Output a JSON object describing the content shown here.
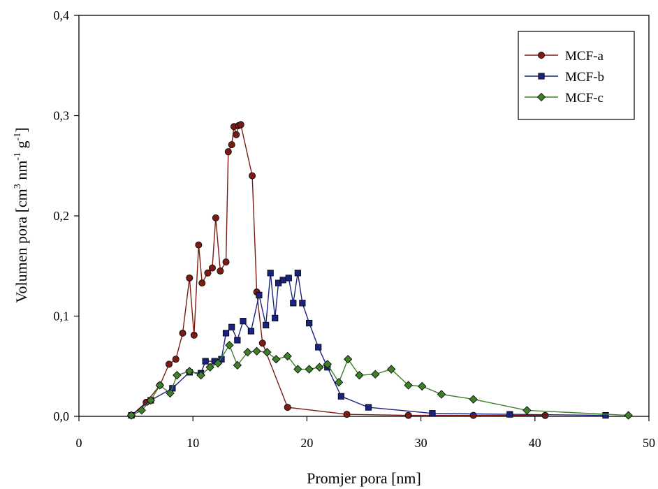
{
  "chart_data": {
    "type": "line",
    "xlabel": "Promjer pora [nm]",
    "ylabel": {
      "base": "Volumen pora [cm",
      "sup1": "3",
      "mid": " nm",
      "sup2": "-1",
      "mid2": " g",
      "sup3": "-1",
      "end": "]"
    },
    "xlim": [
      0,
      50
    ],
    "ylim": [
      0,
      0.4
    ],
    "xticks": [
      {
        "value": 0,
        "label": "0"
      },
      {
        "value": 10,
        "label": "10"
      },
      {
        "value": 20,
        "label": "20"
      },
      {
        "value": 30,
        "label": "30"
      },
      {
        "value": 40,
        "label": "40"
      },
      {
        "value": 50,
        "label": "50"
      }
    ],
    "yticks": [
      {
        "value": 0,
        "label": "0,0"
      },
      {
        "value": 0.1,
        "label": "0,1"
      },
      {
        "value": 0.2,
        "label": "0,2"
      },
      {
        "value": 0.3,
        "label": "0,3"
      },
      {
        "value": 0.4,
        "label": "0,4"
      }
    ],
    "grid": false,
    "legend_position": "top-right",
    "series": [
      {
        "name": "MCF-a",
        "color": "#7b1c14",
        "marker": "circle",
        "points": [
          [
            4.6,
            0.001
          ],
          [
            5.9,
            0.014
          ],
          [
            7.1,
            0.031
          ],
          [
            7.9,
            0.052
          ],
          [
            8.5,
            0.057
          ],
          [
            9.1,
            0.083
          ],
          [
            9.7,
            0.138
          ],
          [
            10.1,
            0.081
          ],
          [
            10.5,
            0.171
          ],
          [
            10.8,
            0.133
          ],
          [
            11.3,
            0.143
          ],
          [
            11.7,
            0.148
          ],
          [
            12.0,
            0.198
          ],
          [
            12.4,
            0.145
          ],
          [
            12.9,
            0.154
          ],
          [
            13.1,
            0.264
          ],
          [
            13.4,
            0.271
          ],
          [
            13.6,
            0.289
          ],
          [
            13.8,
            0.281
          ],
          [
            14.0,
            0.29
          ],
          [
            14.2,
            0.291
          ],
          [
            15.2,
            0.24
          ],
          [
            15.6,
            0.124
          ],
          [
            16.1,
            0.073
          ],
          [
            18.3,
            0.009
          ],
          [
            23.5,
            0.002
          ],
          [
            28.9,
            0.001
          ],
          [
            34.6,
            0.001
          ],
          [
            40.9,
            0.0009
          ]
        ]
      },
      {
        "name": "MCF-b",
        "color": "#1a237e",
        "marker": "square",
        "points": [
          [
            4.6,
            0.001
          ],
          [
            6.3,
            0.016
          ],
          [
            8.2,
            0.028
          ],
          [
            9.7,
            0.044
          ],
          [
            10.7,
            0.043
          ],
          [
            11.1,
            0.055
          ],
          [
            11.9,
            0.055
          ],
          [
            12.5,
            0.057
          ],
          [
            12.9,
            0.083
          ],
          [
            13.4,
            0.089
          ],
          [
            13.9,
            0.076
          ],
          [
            14.4,
            0.095
          ],
          [
            15.1,
            0.085
          ],
          [
            15.8,
            0.121
          ],
          [
            16.4,
            0.091
          ],
          [
            16.8,
            0.143
          ],
          [
            17.2,
            0.098
          ],
          [
            17.5,
            0.133
          ],
          [
            17.9,
            0.136
          ],
          [
            18.4,
            0.138
          ],
          [
            18.8,
            0.113
          ],
          [
            19.2,
            0.143
          ],
          [
            19.6,
            0.113
          ],
          [
            20.2,
            0.093
          ],
          [
            21.0,
            0.069
          ],
          [
            21.8,
            0.049
          ],
          [
            23.0,
            0.02
          ],
          [
            25.4,
            0.009
          ],
          [
            31.0,
            0.003
          ],
          [
            37.8,
            0.002
          ],
          [
            46.2,
            0.001
          ]
        ]
      },
      {
        "name": "MCF-c",
        "color": "#3f7f2a",
        "marker": "diamond",
        "points": [
          [
            4.6,
            0.001
          ],
          [
            5.5,
            0.006
          ],
          [
            6.3,
            0.016
          ],
          [
            7.1,
            0.031
          ],
          [
            8.0,
            0.023
          ],
          [
            8.6,
            0.041
          ],
          [
            9.7,
            0.045
          ],
          [
            10.7,
            0.041
          ],
          [
            11.5,
            0.049
          ],
          [
            12.2,
            0.053
          ],
          [
            13.2,
            0.071
          ],
          [
            13.9,
            0.051
          ],
          [
            14.8,
            0.064
          ],
          [
            15.6,
            0.065
          ],
          [
            16.5,
            0.064
          ],
          [
            17.3,
            0.057
          ],
          [
            18.3,
            0.06
          ],
          [
            19.2,
            0.047
          ],
          [
            20.2,
            0.047
          ],
          [
            21.1,
            0.049
          ],
          [
            21.8,
            0.052
          ],
          [
            22.8,
            0.034
          ],
          [
            23.6,
            0.057
          ],
          [
            24.6,
            0.041
          ],
          [
            26.0,
            0.042
          ],
          [
            27.4,
            0.047
          ],
          [
            28.9,
            0.031
          ],
          [
            30.1,
            0.03
          ],
          [
            31.8,
            0.022
          ],
          [
            34.6,
            0.017
          ],
          [
            39.3,
            0.006
          ],
          [
            48.2,
            0.001
          ]
        ]
      }
    ]
  }
}
